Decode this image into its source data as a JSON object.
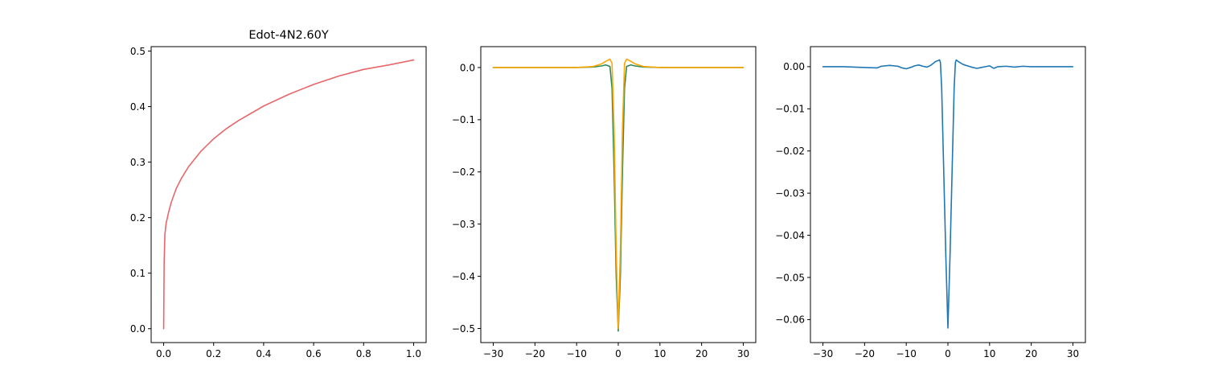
{
  "chart_data": [
    {
      "type": "line",
      "title": "Edot-4N2.60Y",
      "xlabel": "",
      "ylabel": "",
      "xlim": [
        -0.05,
        1.05
      ],
      "ylim": [
        -0.025,
        0.508
      ],
      "xticks": [
        0.0,
        0.2,
        0.4,
        0.6,
        0.8,
        1.0
      ],
      "xtick_labels": [
        "0.0",
        "0.2",
        "0.4",
        "0.6",
        "0.8",
        "1.0"
      ],
      "yticks": [
        0.0,
        0.1,
        0.2,
        0.3,
        0.4,
        0.5
      ],
      "ytick_labels": [
        "0.0",
        "0.1",
        "0.2",
        "0.3",
        "0.4",
        "0.5"
      ],
      "grid": false,
      "series": [
        {
          "color": "#e8666a",
          "x": [
            0.0,
            0.002,
            0.005,
            0.01,
            0.02,
            0.03,
            0.05,
            0.07,
            0.1,
            0.15,
            0.2,
            0.25,
            0.3,
            0.4,
            0.5,
            0.6,
            0.7,
            0.8,
            0.9,
            1.0
          ],
          "y": [
            0.0,
            0.12,
            0.17,
            0.19,
            0.21,
            0.227,
            0.252,
            0.27,
            0.292,
            0.32,
            0.342,
            0.36,
            0.375,
            0.401,
            0.422,
            0.44,
            0.455,
            0.467,
            0.475,
            0.484
          ]
        }
      ]
    },
    {
      "type": "line",
      "title": "",
      "xlabel": "",
      "ylabel": "",
      "xlim": [
        -33.0,
        33.0
      ],
      "ylim": [
        -0.527,
        0.04
      ],
      "xticks": [
        -30,
        -20,
        -10,
        0,
        10,
        20,
        30
      ],
      "xtick_labels": [
        "−30",
        "−20",
        "−10",
        "0",
        "10",
        "20",
        "30"
      ],
      "yticks": [
        0.0,
        -0.1,
        -0.2,
        -0.3,
        -0.4,
        -0.5
      ],
      "ytick_labels": [
        "0.0",
        "−0.1",
        "−0.2",
        "−0.3",
        "−0.4",
        "−0.5"
      ],
      "grid": false,
      "series": [
        {
          "color": "#ffa500",
          "x": [
            -30,
            -20,
            -10,
            -6,
            -4,
            -3,
            -2,
            -1.5,
            -1,
            -0.5,
            0,
            0.5,
            1,
            1.5,
            2,
            3,
            4,
            6,
            10,
            20,
            30
          ],
          "y": [
            0.0,
            0.0,
            0.0,
            0.002,
            0.007,
            0.012,
            0.016,
            0.008,
            -0.12,
            -0.35,
            -0.5,
            -0.35,
            -0.12,
            0.008,
            0.016,
            0.012,
            0.007,
            0.002,
            0.0,
            0.0,
            0.0
          ]
        },
        {
          "color": "#2e8b57",
          "x": [
            -30,
            -20,
            -10,
            -6,
            -4,
            -3,
            -2,
            -1.5,
            -1,
            -0.5,
            0,
            0.5,
            1,
            1.5,
            2,
            3,
            4,
            6,
            10,
            20,
            30
          ],
          "y": [
            0.0,
            0.0,
            0.0,
            0.001,
            0.003,
            0.005,
            0.002,
            -0.04,
            -0.2,
            -0.4,
            -0.505,
            -0.4,
            -0.2,
            -0.04,
            0.002,
            0.005,
            0.003,
            0.001,
            0.0,
            0.0,
            0.0
          ]
        }
      ]
    },
    {
      "type": "line",
      "title": "",
      "xlabel": "",
      "ylabel": "",
      "xlim": [
        -33.0,
        33.0
      ],
      "ylim": [
        -0.06545,
        0.00475
      ],
      "xticks": [
        -30,
        -20,
        -10,
        0,
        10,
        20,
        30
      ],
      "xtick_labels": [
        "−30",
        "−20",
        "−10",
        "0",
        "10",
        "20",
        "30"
      ],
      "yticks": [
        0.0,
        -0.01,
        -0.02,
        -0.03,
        -0.04,
        -0.05,
        -0.06
      ],
      "ytick_labels": [
        "0.00",
        "−0.01",
        "−0.02",
        "−0.03",
        "−0.04",
        "−0.05",
        "−0.06"
      ],
      "grid": false,
      "series": [
        {
          "color": "#1f77b4",
          "x": [
            -30,
            -25,
            -20,
            -17,
            -16,
            -14,
            -12,
            -11,
            -10,
            -9,
            -8,
            -7,
            -6,
            -5,
            -4,
            -3.5,
            -3,
            -2.5,
            -2,
            -1.8,
            -1.5,
            -1,
            -0.5,
            0,
            0.5,
            1,
            1.5,
            1.8,
            2,
            2.5,
            3,
            3.5,
            4,
            5,
            6,
            7,
            8,
            9,
            10,
            11,
            12,
            14,
            16,
            18,
            20,
            25,
            30
          ],
          "y": [
            0.0,
            0.0,
            -0.0002,
            -0.0003,
            0.0001,
            0.0003,
            0.0001,
            -0.0003,
            -0.0005,
            -0.0002,
            0.0002,
            0.0004,
            0.0001,
            -0.0001,
            0.0004,
            0.0008,
            0.0012,
            0.0014,
            0.0016,
            0.001,
            -0.005,
            -0.025,
            -0.045,
            -0.062,
            -0.045,
            -0.025,
            -0.005,
            0.001,
            0.0016,
            0.0012,
            0.0009,
            0.0006,
            0.0004,
            0.0001,
            -0.0002,
            -0.0004,
            -0.0002,
            0.0,
            0.0002,
            -0.0004,
            0.0,
            0.0001,
            -0.0001,
            0.0001,
            0.0,
            0.0,
            0.0
          ]
        }
      ]
    }
  ]
}
